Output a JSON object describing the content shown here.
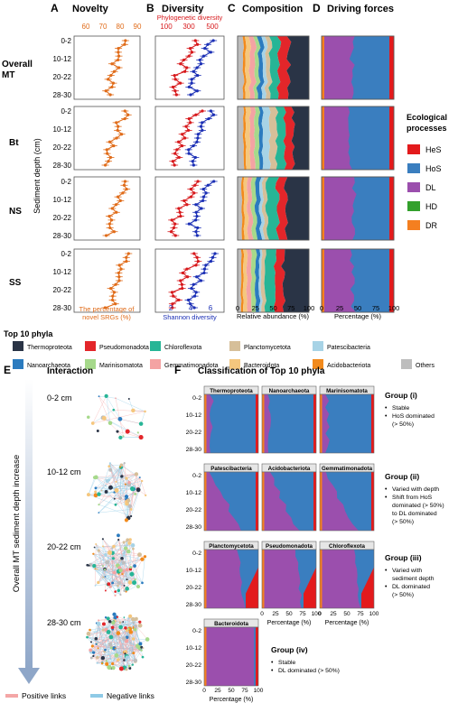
{
  "colors": {
    "Thermoproteota": "#2a3446",
    "Pseudomonadota": "#e3262a",
    "Chloroflexota": "#27b596",
    "Planctomycetota": "#d6bf99",
    "Patescibacteria": "#a7d3e6",
    "Nanoarchaeota": "#2b7bbf",
    "Marinisomatota": "#a6d98b",
    "Gemmatimonadota": "#f4a3a3",
    "Bacteroidota": "#f5c77e",
    "Acidobacteriota": "#f28a1c",
    "Others": "#bdbdbd",
    "HeS": "#e31a1c",
    "HoS": "#3a7ebf",
    "DL": "#9b4fad",
    "HD": "#33a02c",
    "DR": "#f47f20",
    "novelty": "#e06c1a",
    "phylo": "#d7191c",
    "shannon": "#1b2fb5",
    "posLink": "#f4a6a6",
    "negLink": "#8ecae6"
  },
  "panelA": {
    "letter": "A",
    "title": "Novelty",
    "tick_labels": [
      "60",
      "70",
      "80",
      "90"
    ],
    "xlabel_line1": "The percentage of",
    "xlabel_line2": "novel SRGs (%)"
  },
  "panelB": {
    "letter": "B",
    "title": "Diversity",
    "top_axis_label": "Phylogenetic diversity",
    "top_ticks": [
      "100",
      "300",
      "500"
    ],
    "bottom_ticks": [
      "2",
      "4",
      "6"
    ],
    "bottom_axis_label": "Shannon diversity"
  },
  "panelC": {
    "letter": "C",
    "title": "Composition",
    "ticks": [
      "0",
      "25",
      "50",
      "75",
      "100"
    ],
    "xlabel": "Relative abundance (%)"
  },
  "panelD": {
    "letter": "D",
    "title": "Driving forces",
    "ticks": [
      "0",
      "25",
      "50",
      "75",
      "100"
    ],
    "xlabel": "Percentage (%)"
  },
  "ylabel": "Sediment depth (cm)",
  "depth_ticks": [
    "0-2",
    "10-12",
    "20-22",
    "28-30"
  ],
  "rows": [
    {
      "name": "Overall MT",
      "line1": "Overall",
      "line2": "MT"
    },
    {
      "name": "Bt",
      "line1": "Bt",
      "line2": ""
    },
    {
      "name": "NS",
      "line1": "NS",
      "line2": ""
    },
    {
      "name": "SS",
      "line1": "SS",
      "line2": ""
    }
  ],
  "legend_processes": {
    "title_line1": "Ecological",
    "title_line2": "processes",
    "items": [
      "HeS",
      "HoS",
      "DL",
      "HD",
      "DR"
    ]
  },
  "legend_phyla": {
    "title": "Top 10 phyla",
    "items": [
      "Thermoproteota",
      "Pseudomonadota",
      "Chloroflexota",
      "Planctomycetota",
      "Patescibacteria",
      "Nanoarchaeota",
      "Marinisomatota",
      "Gemmatimonadota",
      "Bacteroidota",
      "Acidobacteriota",
      "Others"
    ]
  },
  "panelE": {
    "letter": "E",
    "title": "Interaction",
    "axis_label": "Overall MT sediment depth increase",
    "depths": [
      "0-2 cm",
      "10-12 cm",
      "20-22 cm",
      "28-30 cm"
    ],
    "positive_links": "Positive links",
    "negative_links": "Negative links"
  },
  "panelF": {
    "letter": "F",
    "title": "Classification of Top 10 phyla",
    "ticks": [
      "0",
      "25",
      "50",
      "75",
      "100"
    ],
    "xlabel": "Percentage (%)",
    "phyla": [
      "Thermoproteota",
      "Nanoarchaeota",
      "Marinisomatota",
      "Patescibacteria",
      "Acidobacteriota",
      "Gemmatimonadota",
      "Planctomycetota",
      "Pseudomonadota",
      "Chloroflexota",
      "Bacteroidota"
    ],
    "groups": [
      {
        "title": "Group (i)",
        "bullets": [
          "Stable",
          "HoS dominated",
          "(> 50%)"
        ]
      },
      {
        "title": "Group (ii)",
        "bullets": [
          "Varied with depth",
          "Shift from HoS",
          "dominated (> 50%)",
          "to DL dominated",
          "(> 50%)"
        ]
      },
      {
        "title": "Group (iii)",
        "bullets": [
          "Varied with",
          "sediment depth",
          "DL dominated",
          "(> 50%)"
        ]
      },
      {
        "title": "Group (iv)",
        "bullets": [
          "Stable",
          "DL dominated (> 50%)"
        ]
      }
    ]
  }
}
